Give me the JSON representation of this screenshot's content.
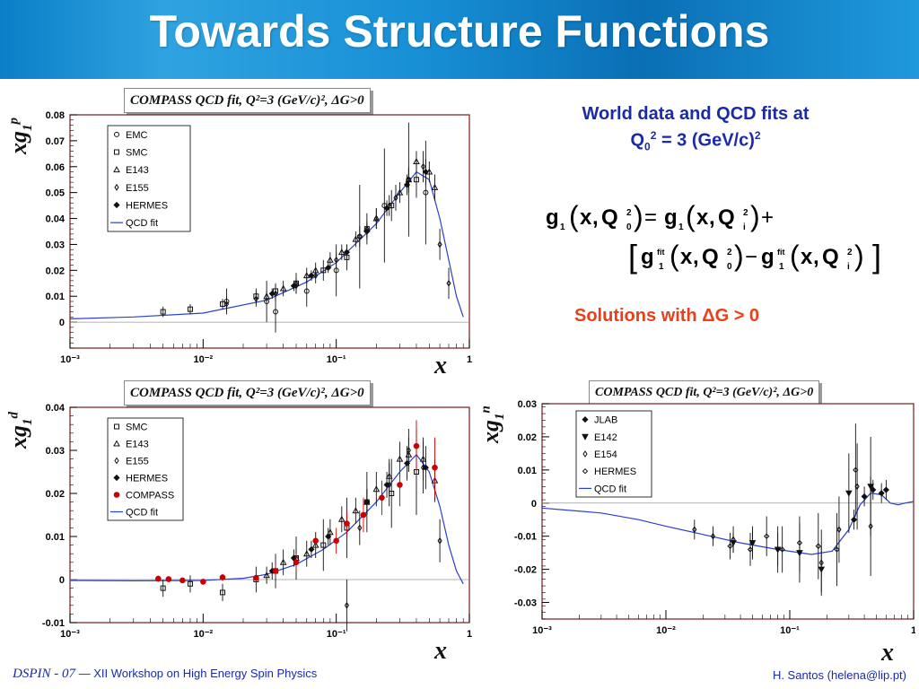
{
  "slide": {
    "title": "Towards Structure Functions",
    "plot_title": "COMPASS QCD fit, Q²=3 (GeV/c)², ΔG>0",
    "right_text_line1": "World data and QCD fits at",
    "right_text_line2": "= 3 (GeV/c)",
    "solutions": "Solutions with ΔG > 0",
    "footer_conference": "DSPIN - 07",
    "footer_dash": "—",
    "footer_workshop": "XII Workshop on High Energy Spin Physics",
    "footer_author": "H. Santos  (helena@lip.pt)"
  },
  "formula": {
    "g": "g",
    "one": "1",
    "x": "x",
    "Q": "Q",
    "zero": "0",
    "i": "i",
    "two": "2",
    "fit": "fit",
    "equals": "=",
    "plus": "+",
    "minus": "−"
  },
  "colors": {
    "accent": "#1a2aa8",
    "solutions": "#e8401a",
    "header": "#1890d6",
    "fit_line": "#2a3fd0",
    "compass": "#cc0000"
  },
  "chart_data": [
    {
      "type": "scatter",
      "title": "COMPASS QCD fit, Q²=3 (GeV/c)², ΔG>0",
      "ylabel": "xg1p",
      "xlabel": "x",
      "xscale": "log",
      "xlim": [
        0.001,
        1
      ],
      "ylim": [
        -0.01,
        0.08
      ],
      "xticks": [
        "10⁻³",
        "10⁻²",
        "10⁻¹",
        "1"
      ],
      "yticks": [
        "0",
        "0.01",
        "0.02",
        "0.03",
        "0.04",
        "0.05",
        "0.06",
        "0.07",
        "0.08"
      ],
      "legend": [
        "EMC",
        "SMC",
        "E143",
        "E155",
        "HERMES",
        "QCD fit"
      ],
      "series": [
        {
          "name": "EMC",
          "marker": "circle",
          "points": [
            [
              0.015,
              0.008,
              0.005
            ],
            [
              0.03,
              0.008,
              0.008
            ],
            [
              0.035,
              0.004,
              0.008
            ],
            [
              0.06,
              0.012,
              0.006
            ],
            [
              0.1,
              0.02,
              0.01
            ],
            [
              0.15,
              0.033,
              0.02
            ],
            [
              0.23,
              0.045,
              0.022
            ],
            [
              0.35,
              0.055,
              0.022
            ],
            [
              0.47,
              0.05,
              0.02
            ]
          ]
        },
        {
          "name": "SMC",
          "marker": "square",
          "points": [
            [
              0.005,
              0.004,
              0.002
            ],
            [
              0.008,
              0.005,
              0.002
            ],
            [
              0.014,
              0.007,
              0.002
            ],
            [
              0.025,
              0.01,
              0.003
            ],
            [
              0.035,
              0.012,
              0.003
            ],
            [
              0.05,
              0.015,
              0.004
            ],
            [
              0.08,
              0.02,
              0.004
            ],
            [
              0.12,
              0.025,
              0.005
            ],
            [
              0.17,
              0.036,
              0.006
            ],
            [
              0.26,
              0.045,
              0.006
            ],
            [
              0.4,
              0.055,
              0.007
            ]
          ]
        },
        {
          "name": "E143",
          "marker": "triangle",
          "points": [
            [
              0.03,
              0.01,
              0.002
            ],
            [
              0.04,
              0.013,
              0.003
            ],
            [
              0.05,
              0.015,
              0.002
            ],
            [
              0.06,
              0.018,
              0.003
            ],
            [
              0.07,
              0.02,
              0.003
            ],
            [
              0.09,
              0.024,
              0.003
            ],
            [
              0.11,
              0.027,
              0.003
            ],
            [
              0.14,
              0.032,
              0.003
            ],
            [
              0.17,
              0.036,
              0.003
            ],
            [
              0.2,
              0.04,
              0.004
            ],
            [
              0.25,
              0.045,
              0.004
            ],
            [
              0.3,
              0.05,
              0.004
            ],
            [
              0.35,
              0.055,
              0.004
            ],
            [
              0.4,
              0.062,
              0.004
            ],
            [
              0.5,
              0.058,
              0.004
            ],
            [
              0.55,
              0.052,
              0.005
            ]
          ]
        },
        {
          "name": "E155",
          "marker": "diamond",
          "points": [
            [
              0.015,
              0.007,
              0.003
            ],
            [
              0.025,
              0.009,
              0.003
            ],
            [
              0.035,
              0.011,
              0.003
            ],
            [
              0.05,
              0.014,
              0.003
            ],
            [
              0.07,
              0.018,
              0.003
            ],
            [
              0.1,
              0.024,
              0.003
            ],
            [
              0.15,
              0.033,
              0.004
            ],
            [
              0.2,
              0.04,
              0.004
            ],
            [
              0.28,
              0.048,
              0.005
            ],
            [
              0.35,
              0.055,
              0.005
            ],
            [
              0.45,
              0.06,
              0.006
            ],
            [
              0.6,
              0.03,
              0.006
            ],
            [
              0.7,
              0.015,
              0.006
            ]
          ]
        },
        {
          "name": "HERMES",
          "marker": "star",
          "points": [
            [
              0.033,
              0.011,
              0.002
            ],
            [
              0.048,
              0.014,
              0.002
            ],
            [
              0.065,
              0.018,
              0.002
            ],
            [
              0.087,
              0.021,
              0.002
            ],
            [
              0.12,
              0.027,
              0.003
            ],
            [
              0.17,
              0.035,
              0.003
            ],
            [
              0.24,
              0.044,
              0.003
            ],
            [
              0.34,
              0.053,
              0.004
            ],
            [
              0.47,
              0.058,
              0.005
            ]
          ]
        }
      ],
      "fit": [
        [
          0.001,
          0.0013
        ],
        [
          0.003,
          0.002
        ],
        [
          0.01,
          0.0035
        ],
        [
          0.03,
          0.0085
        ],
        [
          0.06,
          0.0155
        ],
        [
          0.1,
          0.023
        ],
        [
          0.2,
          0.038
        ],
        [
          0.3,
          0.05
        ],
        [
          0.4,
          0.058
        ],
        [
          0.5,
          0.055
        ],
        [
          0.6,
          0.04
        ],
        [
          0.7,
          0.024
        ],
        [
          0.8,
          0.01
        ],
        [
          0.9,
          0.002
        ]
      ]
    },
    {
      "type": "scatter",
      "title": "COMPASS QCD fit, Q²=3 (GeV/c)², ΔG>0",
      "ylabel": "xg1d",
      "xlabel": "x",
      "xscale": "log",
      "xlim": [
        0.001,
        1
      ],
      "ylim": [
        -0.01,
        0.04
      ],
      "xticks": [
        "10⁻³",
        "10⁻²",
        "10⁻¹",
        "1"
      ],
      "yticks": [
        "-0.01",
        "0",
        "0.01",
        "0.02",
        "0.03",
        "0.04"
      ],
      "legend": [
        "SMC",
        "E143",
        "E155",
        "HERMES",
        "COMPASS",
        "QCD fit"
      ],
      "series": [
        {
          "name": "SMC",
          "marker": "square",
          "points": [
            [
              0.005,
              -0.002,
              0.002
            ],
            [
              0.008,
              -0.001,
              0.002
            ],
            [
              0.014,
              -0.003,
              0.002
            ],
            [
              0.025,
              0.0,
              0.003
            ],
            [
              0.035,
              0.002,
              0.004
            ],
            [
              0.05,
              0.005,
              0.005
            ],
            [
              0.08,
              0.008,
              0.006
            ],
            [
              0.12,
              0.012,
              0.007
            ],
            [
              0.17,
              0.018,
              0.007
            ],
            [
              0.26,
              0.02,
              0.008
            ],
            [
              0.4,
              0.025,
              0.01
            ]
          ]
        },
        {
          "name": "E143",
          "marker": "triangle",
          "points": [
            [
              0.03,
              0.001,
              0.002
            ],
            [
              0.04,
              0.004,
              0.003
            ],
            [
              0.05,
              0.005,
              0.002
            ],
            [
              0.06,
              0.006,
              0.003
            ],
            [
              0.07,
              0.008,
              0.003
            ],
            [
              0.09,
              0.011,
              0.003
            ],
            [
              0.11,
              0.014,
              0.003
            ],
            [
              0.14,
              0.016,
              0.003
            ],
            [
              0.17,
              0.018,
              0.003
            ],
            [
              0.2,
              0.021,
              0.004
            ],
            [
              0.25,
              0.024,
              0.004
            ],
            [
              0.3,
              0.028,
              0.004
            ],
            [
              0.35,
              0.029,
              0.004
            ],
            [
              0.45,
              0.028,
              0.005
            ],
            [
              0.55,
              0.023,
              0.005
            ]
          ]
        },
        {
          "name": "E155",
          "marker": "diamond",
          "points": [
            [
              0.12,
              -0.006,
              0.006
            ],
            [
              0.15,
              0.012,
              0.004
            ],
            [
              0.25,
              0.022,
              0.005
            ],
            [
              0.35,
              0.03,
              0.005
            ],
            [
              0.45,
              0.026,
              0.006
            ],
            [
              0.6,
              0.009,
              0.005
            ]
          ]
        },
        {
          "name": "HERMES",
          "marker": "star",
          "points": [
            [
              0.033,
              0.002,
              0.002
            ],
            [
              0.048,
              0.005,
              0.002
            ],
            [
              0.065,
              0.007,
              0.002
            ],
            [
              0.087,
              0.01,
              0.002
            ],
            [
              0.12,
              0.013,
              0.003
            ],
            [
              0.17,
              0.018,
              0.003
            ],
            [
              0.24,
              0.022,
              0.003
            ],
            [
              0.34,
              0.027,
              0.004
            ],
            [
              0.47,
              0.026,
              0.005
            ]
          ]
        },
        {
          "name": "COMPASS",
          "marker": "dot",
          "points": [
            [
              0.0046,
              0.0002,
              0.0007
            ],
            [
              0.0055,
              0.0001,
              0.0006
            ],
            [
              0.007,
              -0.0002,
              0.0006
            ],
            [
              0.01,
              -0.0005,
              0.0006
            ],
            [
              0.014,
              0.0005,
              0.0008
            ],
            [
              0.025,
              0.0004,
              0.0012
            ],
            [
              0.035,
              0.002,
              0.0015
            ],
            [
              0.05,
              0.004,
              0.002
            ],
            [
              0.07,
              0.009,
              0.002
            ],
            [
              0.1,
              0.009,
              0.003
            ],
            [
              0.12,
              0.013,
              0.003
            ],
            [
              0.16,
              0.015,
              0.004
            ],
            [
              0.22,
              0.019,
              0.004
            ],
            [
              0.3,
              0.022,
              0.005
            ],
            [
              0.4,
              0.031,
              0.006
            ],
            [
              0.55,
              0.026,
              0.007
            ]
          ]
        }
      ],
      "fit": [
        [
          0.001,
          -0.0002
        ],
        [
          0.003,
          -0.0003
        ],
        [
          0.01,
          -0.0002
        ],
        [
          0.02,
          0.0003
        ],
        [
          0.03,
          0.0012
        ],
        [
          0.05,
          0.0035
        ],
        [
          0.08,
          0.007
        ],
        [
          0.12,
          0.011
        ],
        [
          0.2,
          0.018
        ],
        [
          0.3,
          0.025
        ],
        [
          0.4,
          0.029
        ],
        [
          0.5,
          0.025
        ],
        [
          0.6,
          0.017
        ],
        [
          0.7,
          0.008
        ],
        [
          0.8,
          0.002
        ],
        [
          0.9,
          -0.001
        ]
      ]
    },
    {
      "type": "scatter",
      "title": "COMPASS QCD fit, Q²=3 (GeV/c)², ΔG>0",
      "ylabel": "xg1n",
      "xlabel": "x",
      "xscale": "log",
      "xlim": [
        0.001,
        1
      ],
      "ylim": [
        -0.035,
        0.03
      ],
      "xticks": [
        "10⁻³",
        "10⁻²",
        "10⁻¹",
        "1"
      ],
      "yticks": [
        "-0.03",
        "-0.02",
        "-0.01",
        "0",
        "0.01",
        "0.02",
        "0.03"
      ],
      "legend": [
        "JLAB",
        "E142",
        "E154",
        "HERMES",
        "QCD fit"
      ],
      "series": [
        {
          "name": "JLAB",
          "marker": "star",
          "points": [
            [
              0.33,
              -0.005,
              0.003
            ],
            [
              0.4,
              0.002,
              0.003
            ],
            [
              0.47,
              0.004,
              0.003
            ],
            [
              0.55,
              0.003,
              0.003
            ],
            [
              0.6,
              0.004,
              0.003
            ]
          ]
        },
        {
          "name": "E142",
          "marker": "triangle-down",
          "points": [
            [
              0.035,
              -0.012,
              0.003
            ],
            [
              0.05,
              -0.012,
              0.004
            ],
            [
              0.08,
              -0.014,
              0.005
            ],
            [
              0.12,
              -0.015,
              0.006
            ],
            [
              0.18,
              -0.02,
              0.007
            ],
            [
              0.3,
              0.003,
              0.012
            ],
            [
              0.45,
              0.005,
              0.015
            ]
          ]
        },
        {
          "name": "E154",
          "marker": "diamond",
          "points": [
            [
              0.017,
              -0.008,
              0.003
            ],
            [
              0.024,
              -0.01,
              0.003
            ],
            [
              0.035,
              -0.011,
              0.004
            ],
            [
              0.05,
              -0.012,
              0.005
            ],
            [
              0.08,
              -0.014,
              0.007
            ],
            [
              0.12,
              -0.015,
              0.009
            ],
            [
              0.18,
              -0.018,
              0.01
            ],
            [
              0.25,
              -0.008,
              0.01
            ],
            [
              0.35,
              0.005,
              0.013
            ],
            [
              0.45,
              -0.007,
              0.015
            ]
          ]
        },
        {
          "name": "HERMES",
          "marker": "diamond-open",
          "points": [
            [
              0.033,
              -0.013,
              0.004
            ],
            [
              0.048,
              -0.014,
              0.005
            ],
            [
              0.065,
              -0.01,
              0.006
            ],
            [
              0.087,
              -0.014,
              0.007
            ],
            [
              0.12,
              -0.012,
              0.008
            ],
            [
              0.17,
              -0.013,
              0.01
            ],
            [
              0.24,
              -0.014,
              0.011
            ],
            [
              0.34,
              0.01,
              0.014
            ]
          ]
        }
      ],
      "fit": [
        [
          0.001,
          -0.0015
        ],
        [
          0.003,
          -0.003
        ],
        [
          0.006,
          -0.005
        ],
        [
          0.01,
          -0.007
        ],
        [
          0.02,
          -0.0095
        ],
        [
          0.04,
          -0.012
        ],
        [
          0.08,
          -0.014
        ],
        [
          0.15,
          -0.0155
        ],
        [
          0.22,
          -0.0145
        ],
        [
          0.3,
          -0.008
        ],
        [
          0.37,
          -0.0005
        ],
        [
          0.45,
          0.003
        ],
        [
          0.55,
          0.0025
        ],
        [
          0.65,
          0.0
        ],
        [
          0.75,
          -0.0005
        ],
        [
          0.85,
          0.0
        ],
        [
          1.0,
          0.0005
        ]
      ]
    }
  ]
}
